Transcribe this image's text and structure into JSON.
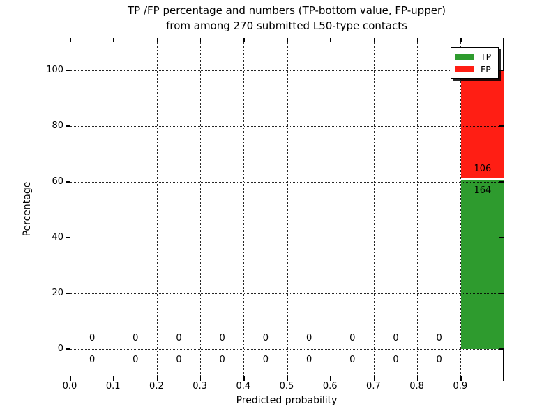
{
  "title": {
    "line1": "TP /FP percentage and numbers (TP-bottom value, FP-upper)",
    "line2": "from among 270 submitted L50-type contacts"
  },
  "axes": {
    "xlabel": "Predicted probability",
    "ylabel": "Percentage",
    "x_tick_labels": [
      "0.0",
      "0.1",
      "0.2",
      "0.3",
      "0.4",
      "0.5",
      "0.6",
      "0.7",
      "0.8",
      "0.9"
    ],
    "x_tick_values": [
      0,
      0.1,
      0.2,
      0.3,
      0.4,
      0.5,
      0.6,
      0.7,
      0.8,
      0.9
    ],
    "y_tick_labels": [
      "0",
      "20",
      "40",
      "60",
      "80",
      "100"
    ],
    "y_tick_values": [
      0,
      20,
      40,
      60,
      80,
      100
    ],
    "xlim": [
      0,
      1
    ],
    "ylim": [
      -10,
      110
    ],
    "grid_style": "dotted"
  },
  "legend": {
    "position": "upper right",
    "entries": [
      {
        "name": "legend-entry-tp",
        "label": "TP",
        "color": "#2e9b2e"
      },
      {
        "name": "legend-entry-fp",
        "label": "FP",
        "color": "#ff1e14"
      }
    ]
  },
  "colors": {
    "tp_green": "#2e9b2e",
    "fp_red": "#ff1e14",
    "grid": "#000000",
    "segment_divider": "#ffffff"
  },
  "chart_data": {
    "type": "bar",
    "stacked": true,
    "title": "TP /FP percentage and numbers (TP-bottom value, FP-upper) from among 270 submitted L50-type contacts",
    "xlabel": "Predicted probability",
    "ylabel": "Percentage",
    "xlim": [
      0,
      1
    ],
    "ylim": [
      -10,
      110
    ],
    "grid": true,
    "legend_position": "upper right",
    "bin_width": 0.1,
    "bin_centers": [
      0.05,
      0.15,
      0.25,
      0.35,
      0.45,
      0.55,
      0.65,
      0.75,
      0.85,
      0.95
    ],
    "total_contacts": 270,
    "series": [
      {
        "name": "TP",
        "color": "#2e9b2e",
        "counts": [
          0,
          0,
          0,
          0,
          0,
          0,
          0,
          0,
          0,
          164
        ],
        "percentages": [
          0,
          0,
          0,
          0,
          0,
          0,
          0,
          0,
          0,
          60.74
        ]
      },
      {
        "name": "FP",
        "color": "#ff1e14",
        "counts": [
          0,
          0,
          0,
          0,
          0,
          0,
          0,
          0,
          0,
          106
        ],
        "percentages": [
          0,
          0,
          0,
          0,
          0,
          0,
          0,
          0,
          0,
          39.26
        ]
      }
    ],
    "value_label_rule": "TP count drawn below stack boundary, FP count drawn above stack boundary"
  }
}
